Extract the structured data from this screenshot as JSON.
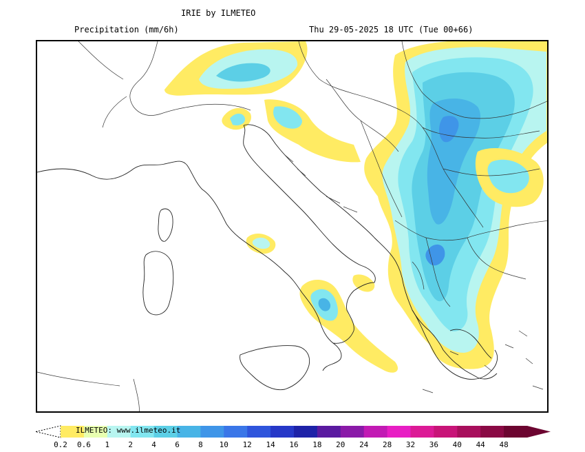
{
  "header": {
    "title": "IRIE by ILMETEO",
    "subtitle_left": "Precipitation (mm/6h)",
    "subtitle_right": "Thu 29-05-2025 18 UTC (Tue 00+66)"
  },
  "legend": {
    "credit": "ILMETEO: www.ilmeteo.it",
    "ticks": [
      "0.2",
      "0.6",
      "1",
      "2",
      "4",
      "6",
      "8",
      "10",
      "12",
      "14",
      "16",
      "18",
      "20",
      "24",
      "28",
      "32",
      "36",
      "40",
      "44",
      "48"
    ],
    "colors": [
      "#ffeb63",
      "#e8ffb0",
      "#b8f5f0",
      "#82e6f0",
      "#5ccfe6",
      "#48b4e6",
      "#3f95e8",
      "#3a76e8",
      "#2f55dc",
      "#2638c8",
      "#1e22a8",
      "#5a1aa0",
      "#8a1aa8",
      "#c21ab4",
      "#e81ec4",
      "#dc1a96",
      "#c81478",
      "#a80f5c",
      "#8a0a44",
      "#6c0530"
    ],
    "precip_palette": {
      "light": "#ffeb63",
      "medium": "#b8f5f0",
      "cyan": "#82e6f0",
      "blue1": "#5ccfe6",
      "blue2": "#48b4e6",
      "blue3": "#3f95e8"
    }
  }
}
